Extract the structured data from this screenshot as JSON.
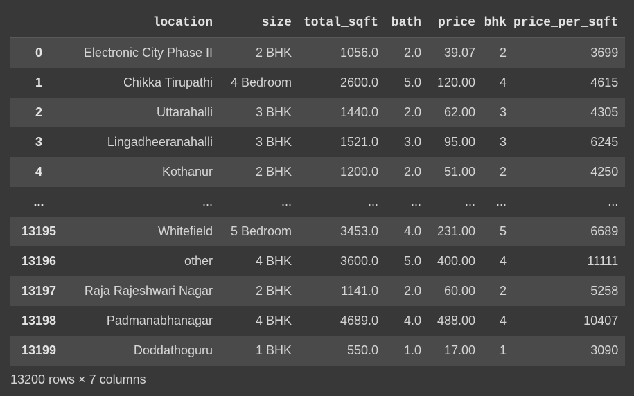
{
  "columns": [
    "",
    "location",
    "size",
    "total_sqft",
    "bath",
    "price",
    "bhk",
    "price_per_sqft"
  ],
  "rows": [
    {
      "index": "0",
      "location": "Electronic City Phase II",
      "size": "2 BHK",
      "total_sqft": "1056.0",
      "bath": "2.0",
      "price": "39.07",
      "bhk": "2",
      "price_per_sqft": "3699"
    },
    {
      "index": "1",
      "location": "Chikka Tirupathi",
      "size": "4 Bedroom",
      "total_sqft": "2600.0",
      "bath": "5.0",
      "price": "120.00",
      "bhk": "4",
      "price_per_sqft": "4615"
    },
    {
      "index": "2",
      "location": "Uttarahalli",
      "size": "3 BHK",
      "total_sqft": "1440.0",
      "bath": "2.0",
      "price": "62.00",
      "bhk": "3",
      "price_per_sqft": "4305"
    },
    {
      "index": "3",
      "location": "Lingadheeranahalli",
      "size": "3 BHK",
      "total_sqft": "1521.0",
      "bath": "3.0",
      "price": "95.00",
      "bhk": "3",
      "price_per_sqft": "6245"
    },
    {
      "index": "4",
      "location": "Kothanur",
      "size": "2 BHK",
      "total_sqft": "1200.0",
      "bath": "2.0",
      "price": "51.00",
      "bhk": "2",
      "price_per_sqft": "4250"
    },
    {
      "index": "...",
      "location": "...",
      "size": "...",
      "total_sqft": "...",
      "bath": "...",
      "price": "...",
      "bhk": "...",
      "price_per_sqft": "..."
    },
    {
      "index": "13195",
      "location": "Whitefield",
      "size": "5 Bedroom",
      "total_sqft": "3453.0",
      "bath": "4.0",
      "price": "231.00",
      "bhk": "5",
      "price_per_sqft": "6689"
    },
    {
      "index": "13196",
      "location": "other",
      "size": "4 BHK",
      "total_sqft": "3600.0",
      "bath": "5.0",
      "price": "400.00",
      "bhk": "4",
      "price_per_sqft": "11111"
    },
    {
      "index": "13197",
      "location": "Raja Rajeshwari Nagar",
      "size": "2 BHK",
      "total_sqft": "1141.0",
      "bath": "2.0",
      "price": "60.00",
      "bhk": "2",
      "price_per_sqft": "5258"
    },
    {
      "index": "13198",
      "location": "Padmanabhanagar",
      "size": "4 BHK",
      "total_sqft": "4689.0",
      "bath": "4.0",
      "price": "488.00",
      "bhk": "4",
      "price_per_sqft": "10407"
    },
    {
      "index": "13199",
      "location": "Doddathoguru",
      "size": "1 BHK",
      "total_sqft": "550.0",
      "bath": "1.0",
      "price": "17.00",
      "bhk": "1",
      "price_per_sqft": "3090"
    }
  ],
  "footer": "13200 rows × 7 columns",
  "colors": {
    "background": "#383838",
    "striped_row": "#4a4a4a",
    "text": "#d5d5d5"
  }
}
